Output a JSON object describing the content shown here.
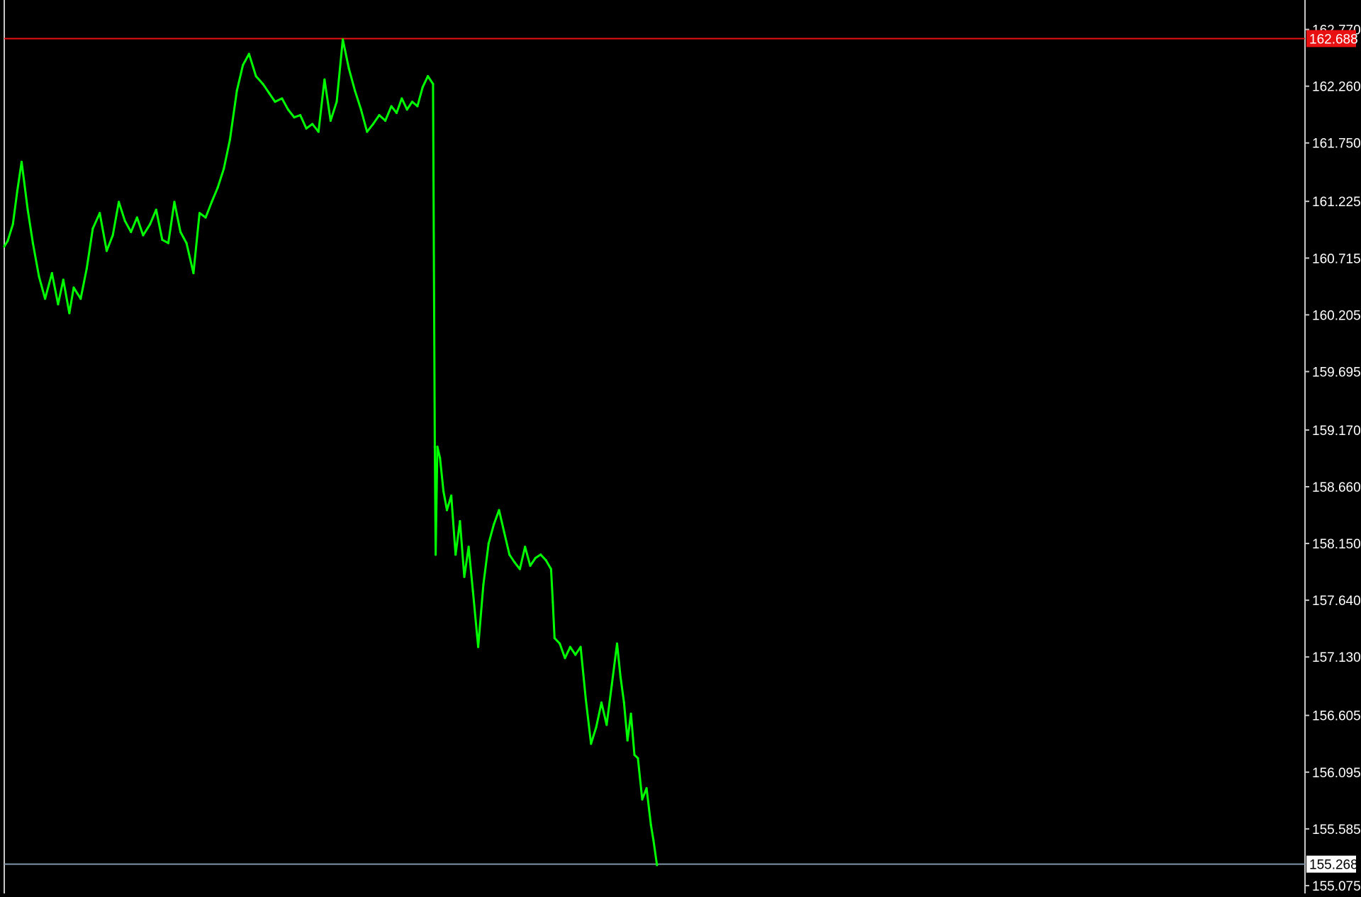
{
  "chart_data": {
    "type": "line",
    "title": "",
    "xlabel": "",
    "ylabel": "",
    "grid": false,
    "ylim": [
      155.03,
      162.78
    ],
    "y_ticks": [
      "162.770",
      "162.260",
      "161.750",
      "161.225",
      "160.715",
      "160.205",
      "159.695",
      "159.170",
      "158.660",
      "158.150",
      "157.640",
      "157.130",
      "156.605",
      "156.095",
      "155.585",
      "155.075"
    ],
    "price_lines": [
      {
        "label": "162.688",
        "value": 162.688,
        "color": "#e81010",
        "label_fill": "#e81010",
        "label_text_color": "#ffffff"
      },
      {
        "label": "155.268",
        "value": 155.268,
        "color": "#7f95a8",
        "label_fill": "#ffffff",
        "label_text_color": "#000000"
      }
    ],
    "series": [
      {
        "color": "#00ff00",
        "x": [
          0,
          4,
          10,
          15,
          20,
          27,
          33,
          40,
          47,
          55,
          62,
          68,
          75,
          80,
          88,
          95,
          102,
          110,
          118,
          125,
          132,
          139,
          146,
          153,
          160,
          168,
          175,
          182,
          189,
          196,
          203,
          210,
          218,
          225,
          232,
          239,
          246,
          253,
          260,
          268,
          275,
          282,
          290,
          298,
          305,
          312,
          320,
          327,
          334,
          341,
          348,
          355,
          362,
          369,
          376,
          383,
          390,
          397,
          404,
          411,
          418,
          425,
          432,
          439,
          446,
          452,
          458,
          464,
          470,
          476,
          482,
          488,
          494,
          496,
          497,
          499,
          502,
          506,
          510,
          515,
          520,
          525,
          530,
          535,
          540,
          546,
          552,
          558,
          564,
          570,
          576,
          582,
          588,
          594,
          600,
          606,
          612,
          618,
          624,
          630,
          632,
          634,
          640,
          646,
          652,
          658,
          664,
          670,
          676,
          682,
          688,
          694,
          700,
          706,
          710,
          714,
          718,
          722,
          726,
          730,
          735,
          740,
          745,
          748,
          752
        ],
        "values": [
          160.82,
          160.87,
          161.02,
          161.32,
          161.58,
          161.15,
          160.85,
          160.55,
          160.35,
          160.58,
          160.3,
          160.52,
          160.22,
          160.45,
          160.35,
          160.62,
          160.98,
          161.12,
          160.78,
          160.92,
          161.22,
          161.05,
          160.95,
          161.08,
          160.92,
          161.02,
          161.15,
          160.88,
          160.85,
          161.22,
          160.95,
          160.85,
          160.58,
          161.12,
          161.08,
          161.22,
          161.35,
          161.52,
          161.78,
          162.22,
          162.45,
          162.55,
          162.35,
          162.28,
          162.2,
          162.12,
          162.15,
          162.05,
          161.98,
          162.0,
          161.88,
          161.92,
          161.85,
          162.32,
          161.95,
          162.12,
          162.68,
          162.42,
          162.22,
          162.05,
          161.85,
          161.92,
          162.0,
          161.95,
          162.08,
          162.02,
          162.15,
          162.05,
          162.12,
          162.08,
          162.25,
          162.35,
          162.28,
          159.02,
          158.05,
          159.02,
          158.92,
          158.62,
          158.45,
          158.58,
          158.05,
          158.35,
          157.85,
          158.12,
          157.72,
          157.22,
          157.78,
          158.15,
          158.32,
          158.45,
          158.25,
          158.05,
          157.98,
          157.92,
          158.12,
          157.95,
          158.02,
          158.05,
          158.0,
          157.92,
          157.62,
          157.3,
          157.25,
          157.12,
          157.22,
          157.15,
          157.22,
          156.75,
          156.35,
          156.5,
          156.72,
          156.52,
          156.88,
          157.25,
          156.95,
          156.72,
          156.38,
          156.62,
          156.25,
          156.22,
          155.85,
          155.95,
          155.62,
          155.48,
          155.26
        ]
      }
    ]
  }
}
